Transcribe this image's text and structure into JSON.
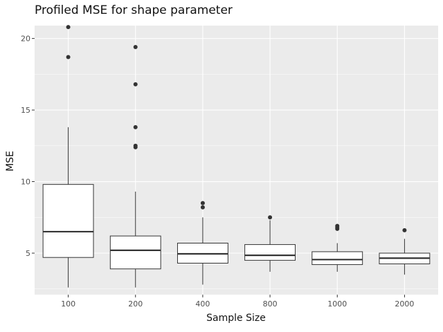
{
  "chart_data": {
    "type": "box",
    "title": "Profiled MSE for shape parameter",
    "xlabel": "Sample Size",
    "ylabel": "MSE",
    "categories": [
      "100",
      "200",
      "400",
      "800",
      "1000",
      "2000"
    ],
    "yticks": [
      5,
      10,
      15,
      20
    ],
    "ylim": [
      2.1,
      20.9
    ],
    "grid": true,
    "background": "#ebebeb",
    "gridColor": "#ffffff",
    "boxFill": "#ffffff",
    "boxStroke": "#333333",
    "boxes": [
      {
        "category": "100",
        "whisker_low": 2.6,
        "q1": 4.7,
        "median": 6.5,
        "q3": 9.8,
        "whisker_high": 13.8,
        "outliers": [
          18.7,
          20.8
        ]
      },
      {
        "category": "200",
        "whisker_low": 2.6,
        "q1": 3.9,
        "median": 5.2,
        "q3": 6.2,
        "whisker_high": 9.3,
        "outliers": [
          12.4,
          12.5,
          13.8,
          16.8,
          19.4
        ]
      },
      {
        "category": "400",
        "whisker_low": 2.8,
        "q1": 4.3,
        "median": 4.95,
        "q3": 5.7,
        "whisker_high": 7.5,
        "outliers": [
          8.2,
          8.5
        ]
      },
      {
        "category": "800",
        "whisker_low": 3.7,
        "q1": 4.5,
        "median": 4.85,
        "q3": 5.6,
        "whisker_high": 7.3,
        "outliers": [
          7.5
        ]
      },
      {
        "category": "1000",
        "whisker_low": 3.7,
        "q1": 4.2,
        "median": 4.55,
        "q3": 5.1,
        "whisker_high": 5.7,
        "outliers": [
          6.7,
          6.8,
          6.9
        ]
      },
      {
        "category": "2000",
        "whisker_low": 3.5,
        "q1": 4.25,
        "median": 4.65,
        "q3": 5.0,
        "whisker_high": 6.0,
        "outliers": [
          6.6
        ]
      }
    ]
  }
}
